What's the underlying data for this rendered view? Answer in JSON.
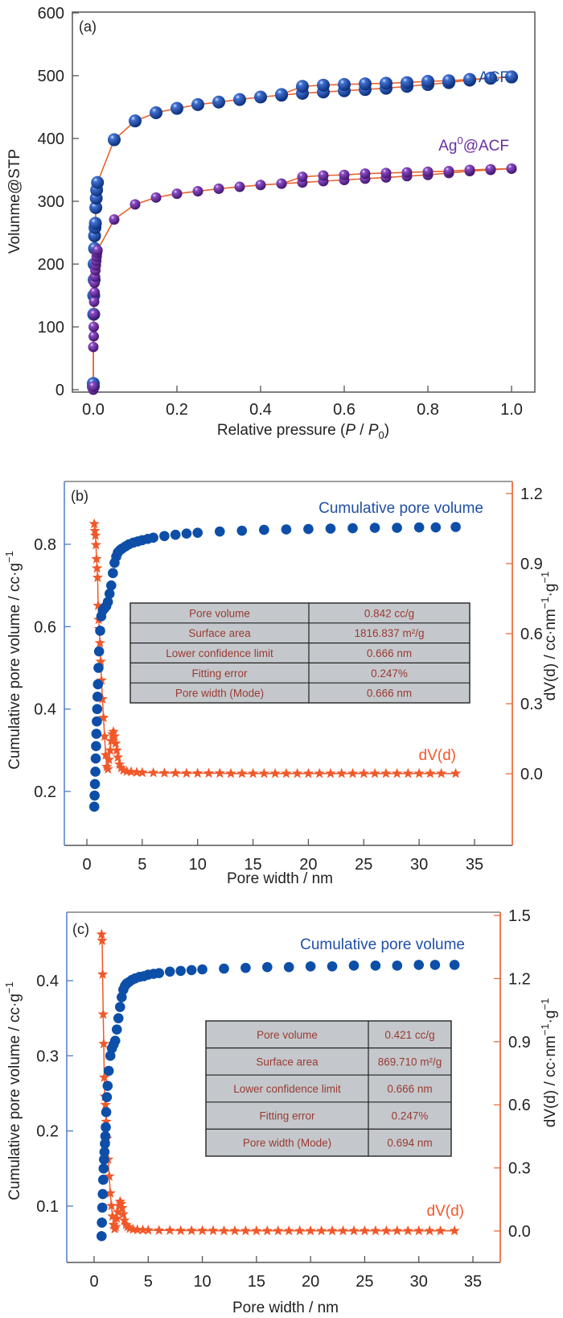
{
  "colors": {
    "acf": "#1f4fa6",
    "ag_acf": "#6a2fa0",
    "connector": "#e8632e",
    "cumulative": "#0d4fa8",
    "dvd": "#f0582a",
    "table_fill": "#c4c8cc",
    "table_text": "#9a3a32",
    "left_axis_bc": "#4f7ec6",
    "right_axis_bc": "#ef6a3e",
    "axis": "#555555"
  },
  "chart_data": [
    {
      "id": "a",
      "type": "scatter",
      "panel_label": "(a)",
      "title": "",
      "xlabel": "Relative pressure (P / P0)",
      "xlabel_parts": [
        "Relative pressure (",
        "P",
        " / ",
        "P",
        "0",
        ")"
      ],
      "ylabel": "Volunme@STP",
      "xlim": [
        -0.05,
        1.05
      ],
      "ylim": [
        -20,
        600
      ],
      "xticks": [
        0.0,
        0.2,
        0.4,
        0.6,
        0.8,
        1.0
      ],
      "xtick_labels": [
        "0.0",
        "0.2",
        "0.4",
        "0.6",
        "0.8",
        "1.0"
      ],
      "yticks": [
        0,
        100,
        200,
        300,
        400,
        500,
        600
      ],
      "ytick_labels": [
        "0",
        "100",
        "200",
        "300",
        "400",
        "500",
        "600"
      ],
      "grid": false,
      "series": [
        {
          "name": "ACF",
          "label_text": "ACF",
          "color_key": "acf",
          "adsorption": {
            "x": [
              0.0,
              0.0,
              0.001,
              0.001,
              0.002,
              0.002,
              0.003,
              0.003,
              0.004,
              0.005,
              0.006,
              0.007,
              0.008,
              0.01,
              0.05,
              0.1,
              0.15,
              0.2,
              0.25,
              0.3,
              0.35,
              0.4,
              0.45,
              0.5,
              0.55,
              0.6,
              0.65,
              0.7,
              0.75,
              0.8,
              0.85,
              0.9,
              0.95,
              1.0
            ],
            "y": [
              5,
              10,
              120,
              150,
              175,
              200,
              225,
              245,
              258,
              265,
              290,
              305,
              318,
              330,
              398,
              428,
              441,
              448,
              454,
              458,
              462,
              466,
              469,
              472,
              474,
              476,
              478,
              480,
              483,
              486,
              489,
              493,
              496,
              498
            ]
          },
          "desorption": {
            "x": [
              1.0,
              0.95,
              0.9,
              0.85,
              0.8,
              0.75,
              0.7,
              0.65,
              0.6,
              0.55,
              0.5,
              0.45
            ],
            "y": [
              498,
              496,
              494,
              492,
              491,
              489,
              488,
              487,
              486,
              485,
              483,
              470
            ]
          }
        },
        {
          "name": "Ag0@ACF",
          "label_text": "Ag",
          "label_sup": "0",
          "label_rest": "@ACF",
          "color_key": "ag_acf",
          "adsorption": {
            "x": [
              0.0,
              0.0,
              0.0,
              0.001,
              0.001,
              0.002,
              0.002,
              0.003,
              0.003,
              0.004,
              0.005,
              0.006,
              0.007,
              0.008,
              0.009,
              0.01,
              0.05,
              0.1,
              0.15,
              0.2,
              0.25,
              0.3,
              0.35,
              0.4,
              0.45,
              0.5,
              0.55,
              0.6,
              0.65,
              0.7,
              0.75,
              0.8,
              0.85,
              0.9,
              0.95,
              1.0
            ],
            "y": [
              0,
              5,
              68,
              85,
              100,
              120,
              140,
              155,
              170,
              180,
              190,
              198,
              205,
              212,
              218,
              222,
              271,
              295,
              306,
              312,
              316,
              320,
              323,
              326,
              328,
              330,
              332,
              334,
              336,
              338,
              340,
              342,
              345,
              348,
              350,
              352
            ]
          },
          "desorption": {
            "x": [
              1.0,
              0.95,
              0.9,
              0.85,
              0.8,
              0.75,
              0.7,
              0.65,
              0.6,
              0.55,
              0.5,
              0.45
            ],
            "y": [
              352,
              351,
              350,
              348,
              347,
              346,
              345,
              344,
              342,
              341,
              339,
              328
            ]
          }
        }
      ]
    },
    {
      "id": "b",
      "type": "scatter",
      "panel_label": "(b)",
      "xlabel": "Pore width / nm",
      "ylabel_left": "Cumulative pore volume / cc·g",
      "ylabel_left_sup": "−1",
      "ylabel_right": "dV(d) / cc·nm",
      "ylabel_right_sup1": "−1",
      "ylabel_right_mid": "·g",
      "ylabel_right_sup2": "−1",
      "xlim": [
        -2,
        37
      ],
      "ylim_left": [
        0.1,
        0.95
      ],
      "ylim_right": [
        -0.15,
        1.22
      ],
      "xticks": [
        0,
        5,
        10,
        15,
        20,
        25,
        30,
        35
      ],
      "xtick_labels": [
        "0",
        "5",
        "10",
        "15",
        "20",
        "25",
        "30",
        "35"
      ],
      "yticks_left": [
        0.2,
        0.4,
        0.6,
        0.8
      ],
      "ytick_labels_left": [
        "0.2",
        "0.4",
        "0.6",
        "0.8"
      ],
      "yticks_right": [
        0.0,
        0.3,
        0.6,
        0.9,
        1.2
      ],
      "ytick_labels_right": [
        "0.0",
        "0.3",
        "0.6",
        "0.9",
        "1.2"
      ],
      "series_labels": {
        "cumulative": "Cumulative pore volume",
        "dvd": "dV(d)"
      },
      "cumulative": {
        "x": [
          0.67,
          0.7,
          0.73,
          0.77,
          0.8,
          0.83,
          0.86,
          0.9,
          0.93,
          0.96,
          1.0,
          1.05,
          1.1,
          1.2,
          1.3,
          1.45,
          1.6,
          1.75,
          1.9,
          2.05,
          2.2,
          2.35,
          2.5,
          2.65,
          2.8,
          3.0,
          3.2,
          3.5,
          3.8,
          4.2,
          4.6,
          5.0,
          5.5,
          6.0,
          7.0,
          8.0,
          9.0,
          10.0,
          12.0,
          14.0,
          16.0,
          18.0,
          20.0,
          22.0,
          24.0,
          26.0,
          28.0,
          30.0,
          31.5,
          33.3
        ],
        "y": [
          0.163,
          0.19,
          0.218,
          0.248,
          0.28,
          0.31,
          0.34,
          0.37,
          0.4,
          0.43,
          0.46,
          0.5,
          0.54,
          0.59,
          0.625,
          0.64,
          0.645,
          0.65,
          0.66,
          0.68,
          0.7,
          0.73,
          0.755,
          0.77,
          0.78,
          0.786,
          0.79,
          0.795,
          0.8,
          0.804,
          0.807,
          0.81,
          0.813,
          0.816,
          0.82,
          0.823,
          0.826,
          0.828,
          0.831,
          0.833,
          0.835,
          0.836,
          0.837,
          0.838,
          0.839,
          0.84,
          0.84,
          0.841,
          0.841,
          0.842
        ]
      },
      "dvd": {
        "x": [
          0.67,
          0.72,
          0.77,
          0.82,
          0.87,
          0.92,
          0.97,
          1.02,
          1.07,
          1.12,
          1.18,
          1.25,
          1.32,
          1.4,
          1.5,
          1.6,
          1.7,
          1.8,
          1.9,
          2.0,
          2.1,
          2.2,
          2.3,
          2.4,
          2.5,
          2.6,
          2.7,
          2.8,
          2.95,
          3.1,
          3.3,
          3.6,
          4.0,
          4.5,
          5.0,
          6.0,
          7.0,
          8.0,
          9.0,
          10.0,
          11.0,
          12.0,
          13.0,
          14.0,
          15.0,
          16.0,
          17.0,
          18.0,
          19.0,
          20.0,
          21.0,
          22.0,
          23.0,
          24.0,
          25.0,
          26.0,
          27.0,
          28.0,
          29.0,
          30.0,
          31.0,
          32.0,
          33.3
        ],
        "y": [
          1.07,
          1.04,
          1.02,
          0.98,
          0.92,
          0.88,
          0.84,
          0.72,
          0.66,
          0.62,
          0.56,
          0.48,
          0.4,
          0.32,
          0.24,
          0.16,
          0.08,
          0.03,
          0.02,
          0.06,
          0.1,
          0.14,
          0.17,
          0.18,
          0.16,
          0.13,
          0.1,
          0.07,
          0.04,
          0.025,
          0.015,
          0.01,
          0.008,
          0.006,
          0.005,
          0.004,
          0.003,
          0.003,
          0.002,
          0.002,
          0.002,
          0.002,
          0.001,
          0.001,
          0.001,
          0.001,
          0.001,
          0.001,
          0.001,
          0.001,
          0.001,
          0.001,
          0.001,
          0.001,
          0.001,
          0.001,
          0.001,
          0.001,
          0.001,
          0.001,
          0.001,
          0.001,
          0.001
        ]
      },
      "table": [
        {
          "label": "Pore volume",
          "value": "0.842 cc/g"
        },
        {
          "label": "Surface area",
          "value": "1816.837 m²/g"
        },
        {
          "label": "Lower confidence limit",
          "value": "0.666 nm"
        },
        {
          "label": "Fitting error",
          "value": "0.247%"
        },
        {
          "label": "Pore width (Mode)",
          "value": "0.666 nm"
        }
      ]
    },
    {
      "id": "c",
      "type": "scatter",
      "panel_label": "(c)",
      "xlabel": "Pore width / nm",
      "ylabel_left": "Cumulative pore volume / cc·g",
      "ylabel_left_sup": "−1",
      "ylabel_right": "dV(d) / cc·nm",
      "ylabel_right_sup1": "−1",
      "ylabel_right_mid": "·g",
      "ylabel_right_sup2": "−1",
      "xlim": [
        -2.5,
        37.5
      ],
      "ylim_left": [
        0.025,
        0.49
      ],
      "ylim_right": [
        -0.15,
        1.52
      ],
      "xticks": [
        0,
        5,
        10,
        15,
        20,
        25,
        30,
        35
      ],
      "xtick_labels": [
        "0",
        "5",
        "10",
        "15",
        "20",
        "25",
        "30",
        "35"
      ],
      "yticks_left": [
        0.1,
        0.2,
        0.3,
        0.4
      ],
      "ytick_labels_left": [
        "0.1",
        "0.2",
        "0.3",
        "0.4"
      ],
      "yticks_right": [
        0.0,
        0.3,
        0.6,
        0.9,
        1.2,
        1.5
      ],
      "ytick_labels_right": [
        "0.0",
        "0.3",
        "0.6",
        "0.9",
        "1.2",
        "1.5"
      ],
      "series_labels": {
        "cumulative": "Cumulative pore volume",
        "dvd": "dV(d)"
      },
      "cumulative": {
        "x": [
          0.69,
          0.72,
          0.76,
          0.8,
          0.84,
          0.88,
          0.92,
          0.96,
          1.0,
          1.04,
          1.08,
          1.12,
          1.18,
          1.25,
          1.35,
          1.5,
          1.65,
          1.8,
          1.95,
          2.1,
          2.25,
          2.4,
          2.55,
          2.7,
          2.85,
          3.0,
          3.2,
          3.5,
          3.8,
          4.2,
          4.6,
          5.0,
          5.5,
          6.0,
          7.0,
          8.0,
          9.0,
          10.0,
          12.0,
          14.0,
          16.0,
          18.0,
          20.0,
          22.0,
          24.0,
          26.0,
          28.0,
          30.0,
          31.5,
          33.3
        ],
        "y": [
          0.06,
          0.078,
          0.098,
          0.116,
          0.135,
          0.15,
          0.162,
          0.172,
          0.183,
          0.193,
          0.205,
          0.225,
          0.245,
          0.26,
          0.28,
          0.3,
          0.31,
          0.315,
          0.32,
          0.335,
          0.35,
          0.365,
          0.378,
          0.388,
          0.393,
          0.396,
          0.398,
          0.401,
          0.403,
          0.405,
          0.406,
          0.408,
          0.409,
          0.41,
          0.412,
          0.413,
          0.414,
          0.415,
          0.416,
          0.417,
          0.418,
          0.418,
          0.419,
          0.419,
          0.42,
          0.42,
          0.42,
          0.421,
          0.421,
          0.421
        ]
      },
      "dvd": {
        "x": [
          0.69,
          0.74,
          0.79,
          0.84,
          0.89,
          0.94,
          0.99,
          1.05,
          1.12,
          1.2,
          1.3,
          1.4,
          1.5,
          1.6,
          1.7,
          1.8,
          1.9,
          2.0,
          2.1,
          2.2,
          2.3,
          2.4,
          2.5,
          2.6,
          2.7,
          2.8,
          2.95,
          3.1,
          3.3,
          3.6,
          4.0,
          4.5,
          5.0,
          6.0,
          7.0,
          8.0,
          9.0,
          10.0,
          11.0,
          12.0,
          13.0,
          14.0,
          15.0,
          16.0,
          17.0,
          18.0,
          19.0,
          20.0,
          21.0,
          22.0,
          23.0,
          24.0,
          25.0,
          26.0,
          27.0,
          28.0,
          29.0,
          30.0,
          31.0,
          32.0,
          33.3
        ],
        "y": [
          1.41,
          1.38,
          1.22,
          1.03,
          0.89,
          0.73,
          0.64,
          0.6,
          0.52,
          0.44,
          0.34,
          0.26,
          0.18,
          0.12,
          0.07,
          0.03,
          0.01,
          0.02,
          0.06,
          0.09,
          0.12,
          0.14,
          0.13,
          0.11,
          0.08,
          0.05,
          0.03,
          0.02,
          0.012,
          0.008,
          0.006,
          0.005,
          0.004,
          0.003,
          0.003,
          0.002,
          0.002,
          0.002,
          0.002,
          0.001,
          0.001,
          0.001,
          0.001,
          0.001,
          0.001,
          0.001,
          0.001,
          0.001,
          0.001,
          0.001,
          0.001,
          0.001,
          0.001,
          0.001,
          0.001,
          0.001,
          0.001,
          0.001,
          0.001,
          0.001,
          0.001
        ]
      },
      "table": [
        {
          "label": "Pore volume",
          "value": "0.421 cc/g"
        },
        {
          "label": "Surface area",
          "value": "869.710 m²/g"
        },
        {
          "label": "Lower confidence limit",
          "value": "0.666 nm"
        },
        {
          "label": "Fitting error",
          "value": "0.247%"
        },
        {
          "label": "Pore width (Mode)",
          "value": "0.694 nm"
        }
      ]
    }
  ]
}
